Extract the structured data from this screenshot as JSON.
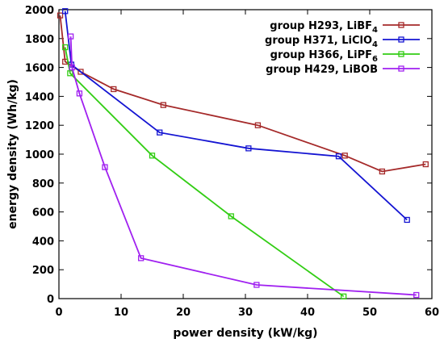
{
  "chart_data": {
    "type": "line",
    "xlabel": "power density (kW/kg)",
    "ylabel": "energy density (Wh/kg)",
    "xlim": [
      0,
      60
    ],
    "ylim": [
      0,
      2000
    ],
    "x_ticks": [
      0,
      10,
      20,
      30,
      40,
      50,
      60
    ],
    "y_ticks": [
      0,
      200,
      400,
      600,
      800,
      1000,
      1200,
      1400,
      1600,
      1800,
      2000
    ],
    "grid": false,
    "legend_position": "top-right",
    "series": [
      {
        "name": "group H293,  LiBF",
        "name_sub": "4",
        "color": "#a52a2a",
        "points": [
          [
            0.2,
            1960
          ],
          [
            1.0,
            1640
          ],
          [
            3.5,
            1570
          ],
          [
            8.8,
            1450
          ],
          [
            16.8,
            1340
          ],
          [
            32,
            1200
          ],
          [
            46,
            990
          ],
          [
            52,
            880
          ],
          [
            59,
            930
          ]
        ]
      },
      {
        "name": "group H371, LiClO",
        "name_sub": "4",
        "color": "#1414d2",
        "points": [
          [
            1.0,
            1990
          ],
          [
            2.0,
            1620
          ],
          [
            16.2,
            1150
          ],
          [
            30.5,
            1040
          ],
          [
            45,
            985
          ],
          [
            56,
            545
          ]
        ]
      },
      {
        "name": "group H366,  LiPF",
        "name_sub": "6",
        "color": "#32cd14",
        "points": [
          [
            1.0,
            1740
          ],
          [
            1.8,
            1560
          ],
          [
            15,
            990
          ],
          [
            27.7,
            570
          ],
          [
            45.8,
            15
          ]
        ]
      },
      {
        "name": "group H429, LiBOB",
        "name_sub": "",
        "color": "#a020f0",
        "points": [
          [
            1.9,
            1815
          ],
          [
            2.1,
            1600
          ],
          [
            3.3,
            1420
          ],
          [
            7.4,
            910
          ],
          [
            13.2,
            280
          ],
          [
            31.8,
            95
          ],
          [
            57.5,
            25
          ]
        ]
      }
    ]
  }
}
